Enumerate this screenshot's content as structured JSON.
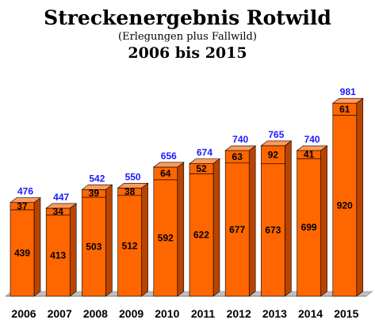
{
  "chart_data": {
    "type": "bar",
    "stacked": true,
    "title": "Streckenergebnis Rotwild",
    "subtitle": "(Erlegungen plus Fallwild)",
    "subtitle2": "2006 bis 2015",
    "categories": [
      "2006",
      "2007",
      "2008",
      "2009",
      "2010",
      "2011",
      "2012",
      "2013",
      "2014",
      "2015"
    ],
    "series": [
      {
        "values": [
          439,
          413,
          503,
          512,
          592,
          622,
          677,
          673,
          699,
          920
        ]
      },
      {
        "values": [
          37,
          34,
          39,
          38,
          64,
          52,
          63,
          92,
          41,
          61
        ]
      }
    ],
    "totals": [
      476,
      447,
      542,
      550,
      656,
      674,
      740,
      765,
      740,
      981
    ],
    "ylim": [
      0,
      1000
    ],
    "grid": false,
    "colors": {
      "bar_front": "#ff6600",
      "bar_top": "#ff9a5c",
      "bar_side": "#b84400",
      "outline": "#000000",
      "total_label": "#1a1aff",
      "floor": "#c0c0c0"
    }
  }
}
